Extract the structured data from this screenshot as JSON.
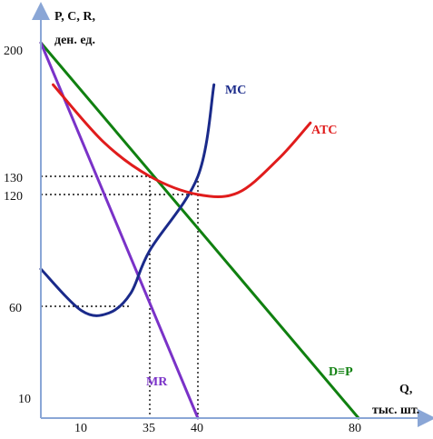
{
  "chart_data": {
    "type": "line",
    "y_axis_title_line1": "P, C, R,",
    "y_axis_title_line2": "ден. ед.",
    "x_axis_title_line1": "Q,",
    "x_axis_title_line2": "тыс. шт.",
    "x_ticks": [
      "10",
      "35",
      "40",
      "80"
    ],
    "y_ticks": [
      "10",
      "60",
      "120",
      "130",
      "200"
    ],
    "series": [
      {
        "name": "D≡P",
        "color": "#108010",
        "points": [
          [
            0,
            200
          ],
          [
            80,
            10
          ]
        ]
      },
      {
        "name": "MR",
        "color": "#7a32c8",
        "points": [
          [
            0,
            200
          ],
          [
            40,
            10
          ]
        ]
      },
      {
        "name": "MC",
        "color": "#1a2a8a",
        "points": [
          [
            0,
            80
          ],
          [
            10,
            58
          ],
          [
            20,
            57
          ],
          [
            28,
            67
          ],
          [
            35,
            90
          ],
          [
            40,
            130
          ],
          [
            44,
            178
          ]
        ]
      },
      {
        "name": "ATC",
        "color": "#e01c1c",
        "points": [
          [
            3,
            178
          ],
          [
            18,
            148
          ],
          [
            35,
            130
          ],
          [
            40,
            120
          ],
          [
            50,
            121
          ],
          [
            60,
            139
          ],
          [
            68,
            158
          ]
        ]
      }
    ],
    "guides": [
      {
        "from": [
          0,
          130
        ],
        "to": [
          35,
          130
        ]
      },
      {
        "from": [
          0,
          120
        ],
        "to": [
          40,
          120
        ]
      },
      {
        "from": [
          0,
          60
        ],
        "to": [
          28,
          60
        ]
      },
      {
        "from": [
          35,
          130
        ],
        "to": [
          35,
          10
        ]
      },
      {
        "from": [
          40,
          130
        ],
        "to": [
          40,
          10
        ]
      }
    ]
  }
}
